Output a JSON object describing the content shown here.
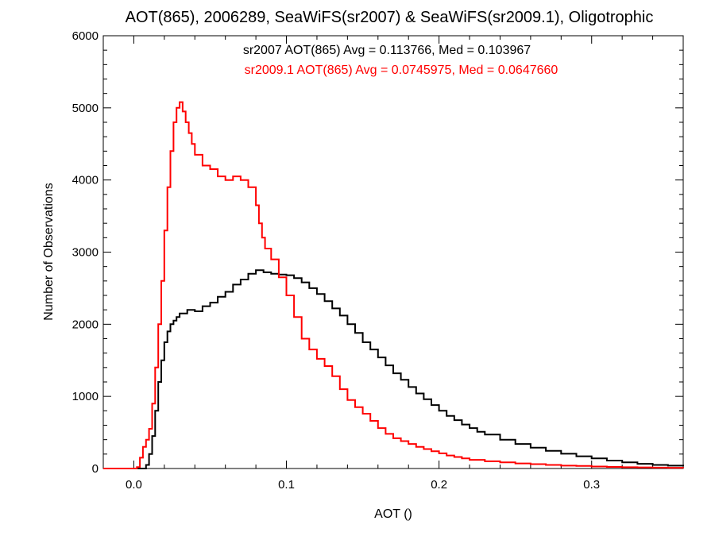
{
  "chart_data": {
    "type": "line",
    "title": "AOT(865), 2006289, SeaWiFS(sr2007) & SeaWiFS(sr2009.1), Oligotrophic",
    "xlabel": "AOT ()",
    "ylabel": "Number of Observations",
    "xlim": [
      -0.02,
      0.36
    ],
    "ylim": [
      0,
      6000
    ],
    "xticks": [
      0.0,
      0.1,
      0.2,
      0.3
    ],
    "xtick_labels": [
      "0.0",
      "0.1",
      "0.2",
      "0.3"
    ],
    "yticks": [
      0,
      1000,
      2000,
      3000,
      4000,
      5000,
      6000
    ],
    "ytick_labels": [
      "0",
      "1000",
      "2000",
      "3000",
      "4000",
      "5000",
      "6000"
    ],
    "grid": false,
    "annotations": [
      {
        "text": "sr2007 AOT(865) Avg = 0.113766, Med = 0.103967",
        "color": "#000000"
      },
      {
        "text": "sr2009.1 AOT(865) Avg = 0.0745975, Med = 0.0647660",
        "color": "#ff0000"
      }
    ],
    "series": [
      {
        "color": "#000000",
        "points": [
          [
            0.0,
            0
          ],
          [
            0.002,
            0
          ],
          [
            0.004,
            0
          ],
          [
            0.006,
            0
          ],
          [
            0.008,
            50
          ],
          [
            0.01,
            200
          ],
          [
            0.012,
            450
          ],
          [
            0.014,
            800
          ],
          [
            0.016,
            1200
          ],
          [
            0.018,
            1500
          ],
          [
            0.02,
            1750
          ],
          [
            0.022,
            1900
          ],
          [
            0.024,
            2000
          ],
          [
            0.026,
            2050
          ],
          [
            0.028,
            2100
          ],
          [
            0.03,
            2150
          ],
          [
            0.035,
            2200
          ],
          [
            0.04,
            2180
          ],
          [
            0.045,
            2250
          ],
          [
            0.05,
            2300
          ],
          [
            0.055,
            2380
          ],
          [
            0.06,
            2450
          ],
          [
            0.065,
            2550
          ],
          [
            0.07,
            2620
          ],
          [
            0.075,
            2700
          ],
          [
            0.08,
            2750
          ],
          [
            0.085,
            2720
          ],
          [
            0.09,
            2700
          ],
          [
            0.095,
            2690
          ],
          [
            0.1,
            2680
          ],
          [
            0.105,
            2640
          ],
          [
            0.11,
            2580
          ],
          [
            0.115,
            2500
          ],
          [
            0.12,
            2420
          ],
          [
            0.125,
            2320
          ],
          [
            0.13,
            2220
          ],
          [
            0.135,
            2120
          ],
          [
            0.14,
            2000
          ],
          [
            0.145,
            1880
          ],
          [
            0.15,
            1750
          ],
          [
            0.155,
            1650
          ],
          [
            0.16,
            1540
          ],
          [
            0.165,
            1430
          ],
          [
            0.17,
            1320
          ],
          [
            0.175,
            1230
          ],
          [
            0.18,
            1130
          ],
          [
            0.185,
            1040
          ],
          [
            0.19,
            960
          ],
          [
            0.195,
            880
          ],
          [
            0.2,
            800
          ],
          [
            0.205,
            730
          ],
          [
            0.21,
            670
          ],
          [
            0.215,
            610
          ],
          [
            0.22,
            560
          ],
          [
            0.225,
            510
          ],
          [
            0.23,
            470
          ],
          [
            0.24,
            400
          ],
          [
            0.25,
            340
          ],
          [
            0.26,
            290
          ],
          [
            0.27,
            245
          ],
          [
            0.28,
            205
          ],
          [
            0.29,
            170
          ],
          [
            0.3,
            140
          ],
          [
            0.31,
            110
          ],
          [
            0.32,
            85
          ],
          [
            0.33,
            65
          ],
          [
            0.34,
            50
          ],
          [
            0.35,
            40
          ],
          [
            0.36,
            30
          ]
        ]
      },
      {
        "color": "#ff0000",
        "points": [
          [
            0.0,
            0
          ],
          [
            0.002,
            20
          ],
          [
            0.004,
            150
          ],
          [
            0.006,
            300
          ],
          [
            0.008,
            400
          ],
          [
            0.01,
            550
          ],
          [
            0.012,
            900
          ],
          [
            0.014,
            1400
          ],
          [
            0.016,
            2000
          ],
          [
            0.018,
            2600
          ],
          [
            0.02,
            3300
          ],
          [
            0.022,
            3900
          ],
          [
            0.024,
            4400
          ],
          [
            0.026,
            4800
          ],
          [
            0.028,
            5000
          ],
          [
            0.03,
            5080
          ],
          [
            0.032,
            4950
          ],
          [
            0.034,
            4800
          ],
          [
            0.036,
            4650
          ],
          [
            0.038,
            4500
          ],
          [
            0.04,
            4350
          ],
          [
            0.045,
            4200
          ],
          [
            0.05,
            4150
          ],
          [
            0.055,
            4050
          ],
          [
            0.06,
            4000
          ],
          [
            0.065,
            4050
          ],
          [
            0.07,
            4000
          ],
          [
            0.075,
            3900
          ],
          [
            0.08,
            3650
          ],
          [
            0.082,
            3400
          ],
          [
            0.084,
            3200
          ],
          [
            0.086,
            3050
          ],
          [
            0.09,
            2900
          ],
          [
            0.095,
            2650
          ],
          [
            0.1,
            2400
          ],
          [
            0.105,
            2100
          ],
          [
            0.11,
            1800
          ],
          [
            0.115,
            1650
          ],
          [
            0.12,
            1520
          ],
          [
            0.125,
            1420
          ],
          [
            0.13,
            1280
          ],
          [
            0.135,
            1100
          ],
          [
            0.14,
            950
          ],
          [
            0.145,
            850
          ],
          [
            0.15,
            760
          ],
          [
            0.155,
            660
          ],
          [
            0.16,
            560
          ],
          [
            0.165,
            480
          ],
          [
            0.17,
            420
          ],
          [
            0.175,
            380
          ],
          [
            0.18,
            340
          ],
          [
            0.185,
            300
          ],
          [
            0.19,
            270
          ],
          [
            0.195,
            240
          ],
          [
            0.2,
            210
          ],
          [
            0.205,
            180
          ],
          [
            0.21,
            160
          ],
          [
            0.215,
            140
          ],
          [
            0.22,
            120
          ],
          [
            0.23,
            100
          ],
          [
            0.24,
            85
          ],
          [
            0.25,
            70
          ],
          [
            0.26,
            60
          ],
          [
            0.27,
            50
          ],
          [
            0.28,
            40
          ],
          [
            0.29,
            35
          ],
          [
            0.3,
            28
          ],
          [
            0.31,
            22
          ],
          [
            0.32,
            18
          ],
          [
            0.33,
            15
          ],
          [
            0.34,
            12
          ],
          [
            0.35,
            10
          ],
          [
            0.36,
            8
          ]
        ]
      }
    ]
  }
}
